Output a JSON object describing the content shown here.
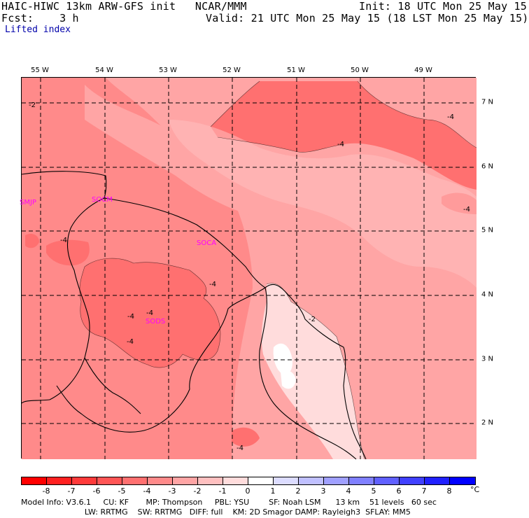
{
  "header": {
    "title": "HAIC-HIWC 13km ARW-GFS init   NCAR/MMM",
    "init": "Init: 18 UTC Mon 25 May 15",
    "fcst": "Fcst:    3 h",
    "valid": "Valid: 21 UTC Mon 25 May 15 (18 LST Mon 25 May 15)",
    "field": "Lifted index"
  },
  "map": {
    "longitudes": [
      "55 W",
      "54 W",
      "53 W",
      "52 W",
      "51 W",
      "50 W",
      "49 W"
    ],
    "latitudes": [
      "7 N",
      "6 N",
      "5 N",
      "4 N",
      "3 N",
      "2 N"
    ],
    "stations": [
      "SMJP",
      "SOCM",
      "SOCA",
      "SODS"
    ],
    "contour_labels": [
      "-2",
      "-4",
      "-4",
      "-4",
      "-4",
      "-4",
      "-4",
      "-4",
      "-2",
      "-4",
      "-4"
    ]
  },
  "colorbar": {
    "ticks": [
      "-8",
      "-7",
      "-6",
      "-5",
      "-4",
      "-3",
      "-2",
      "-1",
      "0",
      "1",
      "2",
      "3",
      "4",
      "5",
      "6",
      "7",
      "8"
    ],
    "unit": "°C",
    "colors": [
      "#ff0000",
      "#ff2020",
      "#ff3a3a",
      "#ff5555",
      "#ff7070",
      "#ff8a8a",
      "#ffa5a5",
      "#ffc0c0",
      "#ffdcdc",
      "#ffffff",
      "#dcdcff",
      "#c0c0ff",
      "#a0a0ff",
      "#8080ff",
      "#6060ff",
      "#4040ff",
      "#2020ff",
      "#0000ff"
    ]
  },
  "footer": {
    "line1": "Model Info: V3.6.1     CU: KF       MP: Thompson     PBL: YSU        SF: Noah LSM      13 km    51 levels   60 sec",
    "line2": "                          LW: RRTMG    SW: RRTMG   DIFF: full    KM: 2D Smagor DAMP: Rayleigh3  SFLAY: MM5"
  }
}
